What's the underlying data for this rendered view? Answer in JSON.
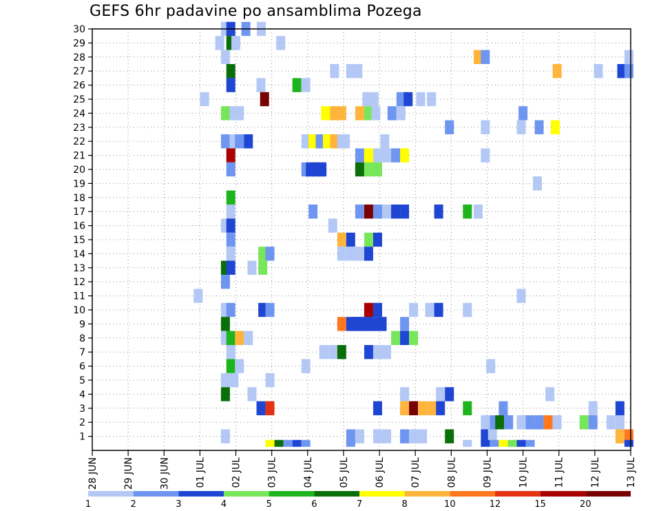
{
  "chart_data": {
    "type": "heatmap",
    "title": "GEFS 6hr padavine po ansamblima Pozega",
    "x_ticks": [
      "28 JUN",
      "29 JUN",
      "30 JUN",
      "01 JUL",
      "02 JUL",
      "03 JUL",
      "04 JUL",
      "05 JUL",
      "06 JUL",
      "07 JUL",
      "08 JUL",
      "09 JUL",
      "10 JUL",
      "11 JUL",
      "12 JUL",
      "13 JUL"
    ],
    "y_ticks": [
      "1",
      "2",
      "3",
      "4",
      "5",
      "6",
      "7",
      "8",
      "9",
      "10",
      "11",
      "12",
      "13",
      "14",
      "15",
      "16",
      "17",
      "18",
      "19",
      "20",
      "21",
      "22",
      "23",
      "24",
      "25",
      "26",
      "27",
      "28",
      "29",
      "30"
    ],
    "x_range": [
      0,
      15
    ],
    "y_range": [
      0,
      30
    ],
    "grid": true,
    "colorbar": {
      "labels": [
        "1",
        "2",
        "3",
        "4",
        "5",
        "6",
        "7",
        "8",
        "10",
        "12",
        "15",
        "20"
      ],
      "colors": [
        "#b4c8f5",
        "#6e96f0",
        "#1e46d2",
        "#78e65a",
        "#1eb41e",
        "#0a6e0a",
        "#ffff00",
        "#ffb43c",
        "#ff781e",
        "#e63214",
        "#aa0000",
        "#780000"
      ]
    },
    "cell_units": "member (y) x time step in days since 28 JUN (x); level = colorbar class 1..12",
    "cells": [
      {
        "member": 30,
        "t": 3.71,
        "level": 1
      },
      {
        "member": 30,
        "t": 3.86,
        "level": 3
      },
      {
        "member": 30,
        "t": 4.28,
        "level": 2
      },
      {
        "member": 30,
        "t": 4.71,
        "level": 1
      },
      {
        "member": 29,
        "t": 3.55,
        "level": 1
      },
      {
        "member": 29,
        "t": 3.86,
        "level": 6
      },
      {
        "member": 29,
        "t": 4.0,
        "level": 1
      },
      {
        "member": 29,
        "t": 5.25,
        "level": 1
      },
      {
        "member": 28,
        "t": 3.71,
        "level": 1
      },
      {
        "member": 28,
        "t": 10.75,
        "level": 8
      },
      {
        "member": 28,
        "t": 10.95,
        "level": 2
      },
      {
        "member": 28,
        "t": 14.95,
        "level": 1
      },
      {
        "member": 27,
        "t": 3.86,
        "level": 6
      },
      {
        "member": 27,
        "t": 6.75,
        "level": 1
      },
      {
        "member": 27,
        "t": 7.2,
        "level": 1
      },
      {
        "member": 27,
        "t": 7.4,
        "level": 1
      },
      {
        "member": 27,
        "t": 12.95,
        "level": 8
      },
      {
        "member": 27,
        "t": 14.1,
        "level": 1
      },
      {
        "member": 27,
        "t": 14.75,
        "level": 3
      },
      {
        "member": 27,
        "t": 14.95,
        "level": 2
      },
      {
        "member": 26,
        "t": 3.86,
        "level": 3
      },
      {
        "member": 26,
        "t": 4.7,
        "level": 1
      },
      {
        "member": 26,
        "t": 5.7,
        "level": 5
      },
      {
        "member": 26,
        "t": 5.95,
        "level": 1
      },
      {
        "member": 25,
        "t": 3.13,
        "level": 1
      },
      {
        "member": 25,
        "t": 4.8,
        "level": 12
      },
      {
        "member": 25,
        "t": 7.65,
        "level": 1
      },
      {
        "member": 25,
        "t": 7.85,
        "level": 1
      },
      {
        "member": 25,
        "t": 8.6,
        "level": 2
      },
      {
        "member": 25,
        "t": 8.8,
        "level": 3
      },
      {
        "member": 25,
        "t": 9.15,
        "level": 1
      },
      {
        "member": 25,
        "t": 9.45,
        "level": 1
      },
      {
        "member": 24,
        "t": 3.71,
        "level": 4
      },
      {
        "member": 24,
        "t": 3.95,
        "level": 1
      },
      {
        "member": 24,
        "t": 4.1,
        "level": 1
      },
      {
        "member": 24,
        "t": 6.5,
        "level": 7
      },
      {
        "member": 24,
        "t": 6.75,
        "level": 8
      },
      {
        "member": 24,
        "t": 6.95,
        "level": 8
      },
      {
        "member": 24,
        "t": 7.45,
        "level": 8
      },
      {
        "member": 24,
        "t": 7.7,
        "level": 4
      },
      {
        "member": 24,
        "t": 7.9,
        "level": 1
      },
      {
        "member": 24,
        "t": 8.35,
        "level": 2
      },
      {
        "member": 24,
        "t": 8.6,
        "level": 1
      },
      {
        "member": 24,
        "t": 12.0,
        "level": 2
      },
      {
        "member": 23,
        "t": 9.95,
        "level": 2
      },
      {
        "member": 23,
        "t": 10.95,
        "level": 1
      },
      {
        "member": 23,
        "t": 11.95,
        "level": 1
      },
      {
        "member": 23,
        "t": 12.45,
        "level": 2
      },
      {
        "member": 23,
        "t": 12.9,
        "level": 7
      },
      {
        "member": 22,
        "t": 3.71,
        "level": 2
      },
      {
        "member": 22,
        "t": 3.95,
        "level": 1
      },
      {
        "member": 22,
        "t": 4.1,
        "level": 2
      },
      {
        "member": 22,
        "t": 4.35,
        "level": 3
      },
      {
        "member": 22,
        "t": 5.95,
        "level": 1
      },
      {
        "member": 22,
        "t": 6.15,
        "level": 7
      },
      {
        "member": 22,
        "t": 6.35,
        "level": 2
      },
      {
        "member": 22,
        "t": 6.55,
        "level": 7
      },
      {
        "member": 22,
        "t": 6.75,
        "level": 8
      },
      {
        "member": 22,
        "t": 6.95,
        "level": 1
      },
      {
        "member": 22,
        "t": 7.05,
        "level": 1
      },
      {
        "member": 22,
        "t": 8.15,
        "level": 1
      },
      {
        "member": 21,
        "t": 3.86,
        "level": 11
      },
      {
        "member": 21,
        "t": 7.45,
        "level": 2
      },
      {
        "member": 21,
        "t": 7.7,
        "level": 7
      },
      {
        "member": 21,
        "t": 7.95,
        "level": 1
      },
      {
        "member": 21,
        "t": 8.2,
        "level": 1
      },
      {
        "member": 21,
        "t": 8.45,
        "level": 2
      },
      {
        "member": 21,
        "t": 8.7,
        "level": 7
      },
      {
        "member": 21,
        "t": 10.95,
        "level": 1
      },
      {
        "member": 20,
        "t": 3.86,
        "level": 2
      },
      {
        "member": 20,
        "t": 5.95,
        "level": 2
      },
      {
        "member": 20,
        "t": 6.2,
        "level": 3
      },
      {
        "member": 20,
        "t": 6.4,
        "level": 3
      },
      {
        "member": 20,
        "t": 7.45,
        "level": 6
      },
      {
        "member": 20,
        "t": 7.7,
        "level": 4
      },
      {
        "member": 20,
        "t": 7.95,
        "level": 4
      },
      {
        "member": 19,
        "t": 12.4,
        "level": 1
      },
      {
        "member": 18,
        "t": 3.86,
        "level": 5
      },
      {
        "member": 17,
        "t": 3.86,
        "level": 1
      },
      {
        "member": 17,
        "t": 6.15,
        "level": 2
      },
      {
        "member": 17,
        "t": 7.45,
        "level": 2
      },
      {
        "member": 17,
        "t": 7.7,
        "level": 12
      },
      {
        "member": 17,
        "t": 7.95,
        "level": 2
      },
      {
        "member": 17,
        "t": 8.2,
        "level": 1
      },
      {
        "member": 17,
        "t": 8.45,
        "level": 3
      },
      {
        "member": 17,
        "t": 8.7,
        "level": 3
      },
      {
        "member": 17,
        "t": 9.65,
        "level": 3
      },
      {
        "member": 17,
        "t": 10.45,
        "level": 5
      },
      {
        "member": 17,
        "t": 10.75,
        "level": 1
      },
      {
        "member": 16,
        "t": 3.71,
        "level": 1
      },
      {
        "member": 16,
        "t": 3.86,
        "level": 3
      },
      {
        "member": 16,
        "t": 6.7,
        "level": 1
      },
      {
        "member": 15,
        "t": 3.86,
        "level": 2
      },
      {
        "member": 15,
        "t": 6.95,
        "level": 8
      },
      {
        "member": 15,
        "t": 7.2,
        "level": 3
      },
      {
        "member": 15,
        "t": 7.7,
        "level": 4
      },
      {
        "member": 15,
        "t": 7.95,
        "level": 3
      },
      {
        "member": 14,
        "t": 3.86,
        "level": 1
      },
      {
        "member": 14,
        "t": 4.75,
        "level": 4
      },
      {
        "member": 14,
        "t": 4.95,
        "level": 2
      },
      {
        "member": 14,
        "t": 6.95,
        "level": 1
      },
      {
        "member": 14,
        "t": 7.2,
        "level": 1
      },
      {
        "member": 14,
        "t": 7.45,
        "level": 1
      },
      {
        "member": 14,
        "t": 7.7,
        "level": 3
      },
      {
        "member": 13,
        "t": 3.71,
        "level": 6
      },
      {
        "member": 13,
        "t": 3.86,
        "level": 3
      },
      {
        "member": 13,
        "t": 4.45,
        "level": 1
      },
      {
        "member": 13,
        "t": 4.75,
        "level": 4
      },
      {
        "member": 12,
        "t": 3.71,
        "level": 2
      },
      {
        "member": 11,
        "t": 2.95,
        "level": 1
      },
      {
        "member": 11,
        "t": 11.95,
        "level": 1
      },
      {
        "member": 10,
        "t": 3.71,
        "level": 1
      },
      {
        "member": 10,
        "t": 3.86,
        "level": 2
      },
      {
        "member": 10,
        "t": 4.75,
        "level": 3
      },
      {
        "member": 10,
        "t": 4.95,
        "level": 2
      },
      {
        "member": 10,
        "t": 7.7,
        "level": 11
      },
      {
        "member": 10,
        "t": 7.95,
        "level": 3
      },
      {
        "member": 10,
        "t": 8.95,
        "level": 1
      },
      {
        "member": 10,
        "t": 9.4,
        "level": 1
      },
      {
        "member": 10,
        "t": 9.65,
        "level": 3
      },
      {
        "member": 10,
        "t": 10.45,
        "level": 1
      },
      {
        "member": 9,
        "t": 3.71,
        "level": 6
      },
      {
        "member": 9,
        "t": 6.95,
        "level": 9
      },
      {
        "member": 9,
        "t": 7.2,
        "level": 3
      },
      {
        "member": 9,
        "t": 7.45,
        "level": 3
      },
      {
        "member": 9,
        "t": 7.7,
        "level": 3
      },
      {
        "member": 9,
        "t": 8.7,
        "level": 2
      },
      {
        "member": 8,
        "t": 3.71,
        "level": 1
      },
      {
        "member": 8,
        "t": 3.86,
        "level": 5
      },
      {
        "member": 8,
        "t": 4.1,
        "level": 8
      },
      {
        "member": 8,
        "t": 4.35,
        "level": 1
      },
      {
        "member": 8,
        "t": 8.45,
        "level": 4
      },
      {
        "member": 8,
        "t": 8.7,
        "level": 3
      },
      {
        "member": 8,
        "t": 8.95,
        "level": 4
      },
      {
        "member": 7,
        "t": 3.86,
        "level": 1
      },
      {
        "member": 7,
        "t": 6.45,
        "level": 1
      },
      {
        "member": 7,
        "t": 6.7,
        "level": 1
      },
      {
        "member": 7,
        "t": 6.95,
        "level": 6
      },
      {
        "member": 7,
        "t": 7.7,
        "level": 3
      },
      {
        "member": 7,
        "t": 7.95,
        "level": 1
      },
      {
        "member": 7,
        "t": 8.2,
        "level": 1
      },
      {
        "member": 6,
        "t": 3.86,
        "level": 5
      },
      {
        "member": 6,
        "t": 4.1,
        "level": 1
      },
      {
        "member": 6,
        "t": 5.95,
        "level": 1
      },
      {
        "member": 6,
        "t": 11.1,
        "level": 1
      },
      {
        "member": 5,
        "t": 3.71,
        "level": 1
      },
      {
        "member": 5,
        "t": 3.95,
        "level": 1
      },
      {
        "member": 5,
        "t": 4.95,
        "level": 1
      },
      {
        "member": 4,
        "t": 3.71,
        "level": 6
      },
      {
        "member": 4,
        "t": 4.45,
        "level": 1
      },
      {
        "member": 4,
        "t": 8.7,
        "level": 1
      },
      {
        "member": 4,
        "t": 9.7,
        "level": 1
      },
      {
        "member": 4,
        "t": 9.95,
        "level": 3
      },
      {
        "member": 4,
        "t": 12.75,
        "level": 1
      },
      {
        "member": 3,
        "t": 4.7,
        "level": 3
      },
      {
        "member": 3,
        "t": 4.95,
        "level": 10
      },
      {
        "member": 3,
        "t": 7.95,
        "level": 3
      },
      {
        "member": 3,
        "t": 8.7,
        "level": 8
      },
      {
        "member": 3,
        "t": 8.95,
        "level": 12
      },
      {
        "member": 3,
        "t": 9.2,
        "level": 8
      },
      {
        "member": 3,
        "t": 9.45,
        "level": 8
      },
      {
        "member": 3,
        "t": 9.7,
        "level": 3
      },
      {
        "member": 3,
        "t": 10.45,
        "level": 5
      },
      {
        "member": 3,
        "t": 11.45,
        "level": 2
      },
      {
        "member": 3,
        "t": 13.95,
        "level": 1
      },
      {
        "member": 3,
        "t": 14.7,
        "level": 3
      },
      {
        "member": 2,
        "t": 10.95,
        "level": 1
      },
      {
        "member": 2,
        "t": 11.2,
        "level": 2
      },
      {
        "member": 2,
        "t": 11.35,
        "level": 6
      },
      {
        "member": 2,
        "t": 11.6,
        "level": 2
      },
      {
        "member": 2,
        "t": 11.95,
        "level": 1
      },
      {
        "member": 2,
        "t": 12.2,
        "level": 2
      },
      {
        "member": 2,
        "t": 12.45,
        "level": 2
      },
      {
        "member": 2,
        "t": 12.7,
        "level": 9
      },
      {
        "member": 2,
        "t": 12.95,
        "level": 1
      },
      {
        "member": 2,
        "t": 13.7,
        "level": 4
      },
      {
        "member": 2,
        "t": 13.95,
        "level": 2
      },
      {
        "member": 2,
        "t": 14.45,
        "level": 1
      },
      {
        "member": 2,
        "t": 14.7,
        "level": 1
      },
      {
        "member": 1,
        "t": 3.71,
        "level": 1
      },
      {
        "member": 1,
        "t": 7.2,
        "level": 2
      },
      {
        "member": 1,
        "t": 7.45,
        "level": 1
      },
      {
        "member": 1,
        "t": 7.95,
        "level": 1
      },
      {
        "member": 1,
        "t": 8.2,
        "level": 1
      },
      {
        "member": 1,
        "t": 8.7,
        "level": 2
      },
      {
        "member": 1,
        "t": 8.95,
        "level": 1
      },
      {
        "member": 1,
        "t": 9.2,
        "level": 1
      },
      {
        "member": 1,
        "t": 9.95,
        "level": 6
      },
      {
        "member": 1,
        "t": 10.95,
        "level": 3
      },
      {
        "member": 1,
        "t": 11.15,
        "level": 1
      },
      {
        "member": 1,
        "t": 14.7,
        "level": 8
      },
      {
        "member": 1,
        "t": 14.95,
        "level": 9
      },
      {
        "member": 0.5,
        "t": 4.95,
        "level": 7
      },
      {
        "member": 0.5,
        "t": 5.2,
        "level": 6
      },
      {
        "member": 0.5,
        "t": 5.45,
        "level": 2
      },
      {
        "member": 0.5,
        "t": 5.7,
        "level": 3
      },
      {
        "member": 0.5,
        "t": 5.95,
        "level": 2
      },
      {
        "member": 0.5,
        "t": 7.2,
        "level": 2
      },
      {
        "member": 0.5,
        "t": 10.45,
        "level": 1
      },
      {
        "member": 0.5,
        "t": 10.95,
        "level": 3
      },
      {
        "member": 0.5,
        "t": 11.2,
        "level": 2
      },
      {
        "member": 0.5,
        "t": 11.45,
        "level": 7
      },
      {
        "member": 0.5,
        "t": 11.7,
        "level": 4
      },
      {
        "member": 0.5,
        "t": 11.95,
        "level": 3
      },
      {
        "member": 0.5,
        "t": 12.2,
        "level": 2
      },
      {
        "member": 0.5,
        "t": 14.95,
        "level": 3
      }
    ],
    "bars": [
      {
        "member": 9,
        "t_start": 7.2,
        "t_end": 8.2,
        "level": 3
      },
      {
        "member": 20,
        "t_start": 5.95,
        "t_end": 6.45,
        "level": 3
      }
    ]
  }
}
